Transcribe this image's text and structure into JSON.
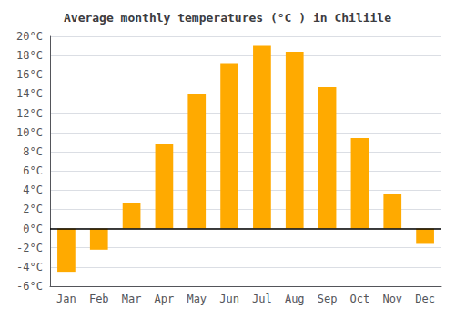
{
  "chart_data": {
    "type": "bar",
    "title": "Average monthly temperatures (°C ) in Chiliile",
    "categories": [
      "Jan",
      "Feb",
      "Mar",
      "Apr",
      "May",
      "Jun",
      "Jul",
      "Aug",
      "Sep",
      "Oct",
      "Nov",
      "Dec"
    ],
    "values": [
      -4.5,
      -2.2,
      2.7,
      8.8,
      14.0,
      17.2,
      19.0,
      18.4,
      14.7,
      9.4,
      3.6,
      -1.6
    ],
    "color": "#FFAA00",
    "ylim": [
      -6,
      20
    ],
    "yticks": [
      {
        "value": -6,
        "label": "-6°C"
      },
      {
        "value": -4,
        "label": "-4°C"
      },
      {
        "value": -2,
        "label": "-2°C"
      },
      {
        "value": 0,
        "label": "0°C"
      },
      {
        "value": 2,
        "label": "2°C"
      },
      {
        "value": 4,
        "label": "4°C"
      },
      {
        "value": 6,
        "label": "6°C"
      },
      {
        "value": 8,
        "label": "8°C"
      },
      {
        "value": 10,
        "label": "10°C"
      },
      {
        "value": 12,
        "label": "12°C"
      },
      {
        "value": 14,
        "label": "14°C"
      },
      {
        "value": 16,
        "label": "16°C"
      },
      {
        "value": 18,
        "label": "18°C"
      },
      {
        "value": 20,
        "label": "20°C"
      }
    ],
    "grid": true
  }
}
